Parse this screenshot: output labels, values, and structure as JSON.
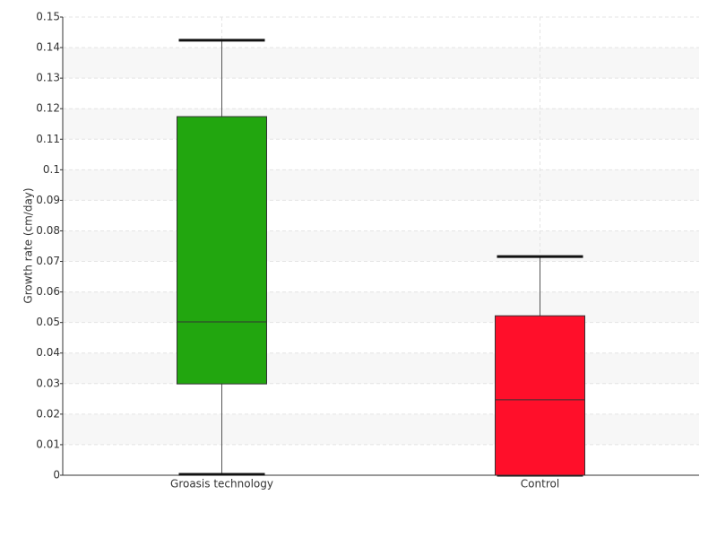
{
  "chart_data": {
    "type": "box",
    "ylabel": "Growth rate (cm/day)",
    "categories": [
      "Groasis technology",
      "Control"
    ],
    "boxes": [
      {
        "color": "#22a60f",
        "min": 0.0003,
        "q1": 0.0299,
        "median": 0.0502,
        "q3": 0.1174,
        "max": 0.1424
      },
      {
        "color": "#ff0f2a",
        "min": 0,
        "q1": 0,
        "median": 0.0247,
        "q3": 0.0522,
        "max": 0.0716
      }
    ],
    "ylim": [
      0,
      0.15
    ],
    "yticks": [
      0,
      0.01,
      0.02,
      0.03,
      0.04,
      0.05,
      0.06,
      0.07,
      0.08,
      0.09,
      0.1,
      0.11,
      0.12,
      0.13,
      0.14,
      0.15
    ],
    "grid": true
  }
}
